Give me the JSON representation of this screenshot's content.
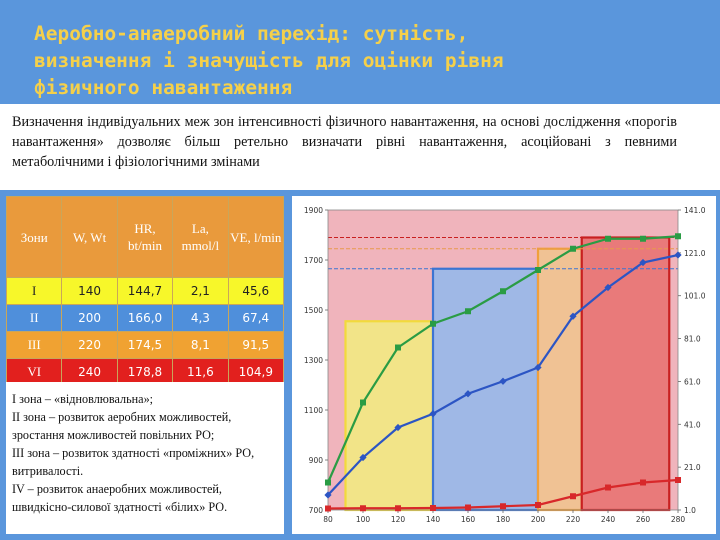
{
  "title_lines": [
    "Аеробно-анаеробний перехід: сутність,",
    "визначення і значущість для оцінки рівня",
    "фізичного навантаження"
  ],
  "intro": "Визначення індивідуальних меж зон інтенсивності фізичного навантаження, на основі дослідження «порогів навантаження» дозволяє більш ретельно визначати рівні навантаження, асоційовані з певними метаболічними і фізіологічними змінами",
  "table": {
    "headers": [
      "Зони",
      "W, Wt",
      "HR, bt/min",
      "La, mmol/l",
      "VE, l/min"
    ],
    "rows": [
      {
        "zone": "I",
        "cells": [
          "140",
          "144,7",
          "2,1",
          "45,6"
        ],
        "bg": "#f7f72a",
        "color": "#222222"
      },
      {
        "zone": "II",
        "cells": [
          "200",
          "166,0",
          "4,3",
          "67,4"
        ],
        "bg": "#4f8fdb",
        "color": "#ffffff"
      },
      {
        "zone": "III",
        "cells": [
          "220",
          "174,5",
          "8,1",
          "91,5"
        ],
        "bg": "#f0a232",
        "color": "#ffffff"
      },
      {
        "zone": "VI",
        "cells": [
          "240",
          "178,8",
          "11,6",
          "104,9"
        ],
        "bg": "#e2201e",
        "color": "#ffffff"
      }
    ]
  },
  "zone_notes": [
    "I зона – «відновлювальна»;",
    "II зона – розвиток аеробних можливостей, зростання можливостей повільних РО;",
    "III зона – розвиток здатності «проміжних» РО, витривалості.",
    "IV – розвиток анаеробних можливостей, швидкісно-силової здатності «білих» РО."
  ],
  "chart_data": {
    "type": "line",
    "x_ticks": [
      80,
      100,
      120,
      140,
      160,
      180,
      200,
      220,
      240,
      260,
      280
    ],
    "xlim": [
      80,
      280
    ],
    "y_left_ticks": [
      700,
      900,
      1100,
      1300,
      1500,
      1700,
      1900
    ],
    "y_left_lim": [
      700,
      1900
    ],
    "y_right_ticks": [
      "1.0",
      "21.0",
      "41.0",
      "61.0",
      "81.0",
      "101.0",
      "121.0",
      "141.0"
    ],
    "y_right_lim": [
      1,
      141
    ],
    "series": [
      {
        "color": "#2a9c44",
        "marker": "square",
        "axis": "left",
        "x": [
          80,
          100,
          120,
          140,
          160,
          180,
          200,
          220,
          240,
          260,
          280
        ],
        "y": [
          810,
          1130,
          1350,
          1445,
          1495,
          1575,
          1660,
          1745,
          1785,
          1785,
          1795
        ]
      },
      {
        "color": "#2c55c4",
        "marker": "diamond",
        "axis": "left",
        "x": [
          80,
          100,
          120,
          140,
          160,
          180,
          200,
          220,
          240,
          260,
          280
        ],
        "y": [
          760,
          910,
          1030,
          1085,
          1165,
          1215,
          1270,
          1475,
          1590,
          1690,
          1720
        ]
      },
      {
        "color": "#d8282a",
        "marker": "square",
        "axis": "left",
        "x": [
          80,
          100,
          120,
          140,
          160,
          180,
          200,
          220,
          240,
          260,
          280
        ],
        "y": [
          706,
          707,
          707,
          708,
          710,
          715,
          720,
          755,
          790,
          810,
          820
        ]
      }
    ],
    "zones": [
      {
        "x_from": 80,
        "x_to": 280,
        "y_top": 1900,
        "fill": "#f0b4bc",
        "stroke": "none"
      },
      {
        "x_from": 90,
        "x_to": 140,
        "y_top": 1455,
        "fill": "#f2e488",
        "stroke": "#f2da3c"
      },
      {
        "x_from": 140,
        "x_to": 200,
        "y_top": 1665,
        "fill": "#9fb8e6",
        "stroke": "#3d74d2"
      },
      {
        "x_from": 200,
        "x_to": 225,
        "y_top": 1745,
        "fill": "#f0c294",
        "stroke": "#f0a03c"
      },
      {
        "x_from": 225,
        "x_to": 275,
        "y_top": 1790,
        "fill": "#e97a7a",
        "stroke": "#c82020"
      }
    ],
    "ref_lines": [
      {
        "y": 1790,
        "color": "#c82020"
      },
      {
        "y": 1745,
        "color": "#e89a4c"
      },
      {
        "y": 1665,
        "color": "#3d74d2"
      }
    ]
  }
}
